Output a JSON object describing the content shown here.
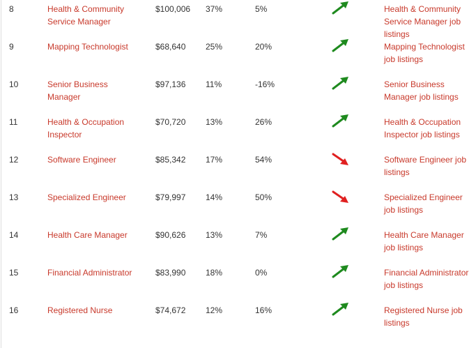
{
  "rows": [
    {
      "rank": "8",
      "title": "Health & Community Service Manager",
      "title_lines": [
        "Health & Community",
        "Service Manager"
      ],
      "salary": "$100,006",
      "pct_a": "37%",
      "pct_b": "5%",
      "trend": "up",
      "listing_lines": [
        "Health & Community",
        "Service Manager job",
        "listings"
      ]
    },
    {
      "rank": "9",
      "title": "Mapping Technologist",
      "title_lines": [
        "Mapping Technologist"
      ],
      "salary": "$68,640",
      "pct_a": "25%",
      "pct_b": "20%",
      "trend": "up",
      "listing_lines": [
        "Mapping Technologist",
        "job listings"
      ]
    },
    {
      "rank": "10",
      "title": "Senior Business Manager",
      "title_lines": [
        "Senior Business",
        "Manager"
      ],
      "salary": "$97,136",
      "pct_a": "11%",
      "pct_b": "-16%",
      "trend": "up",
      "listing_lines": [
        "Senior Business",
        "Manager job listings"
      ]
    },
    {
      "rank": "11",
      "title": "Health & Occupation Inspector",
      "title_lines": [
        "Health & Occupation",
        "Inspector"
      ],
      "salary": "$70,720",
      "pct_a": "13%",
      "pct_b": "26%",
      "trend": "up",
      "listing_lines": [
        "Health & Occupation",
        "Inspector job listings"
      ]
    },
    {
      "rank": "12",
      "title": "Software Engineer",
      "title_lines": [
        "Software Engineer"
      ],
      "salary": "$85,342",
      "pct_a": "17%",
      "pct_b": "54%",
      "trend": "down",
      "listing_lines": [
        "Software Engineer job",
        "listings"
      ]
    },
    {
      "rank": "13",
      "title": "Specialized Engineer",
      "title_lines": [
        "Specialized Engineer"
      ],
      "salary": "$79,997",
      "pct_a": "14%",
      "pct_b": "50%",
      "trend": "down",
      "listing_lines": [
        "Specialized Engineer",
        "job listings"
      ]
    },
    {
      "rank": "14",
      "title": "Health Care Manager",
      "title_lines": [
        "Health Care Manager"
      ],
      "salary": "$90,626",
      "pct_a": "13%",
      "pct_b": "7%",
      "trend": "up",
      "listing_lines": [
        "Health Care Manager",
        "job listings"
      ]
    },
    {
      "rank": "15",
      "title": "Financial Administrator",
      "title_lines": [
        "Financial Administrator"
      ],
      "salary": "$83,990",
      "pct_a": "18%",
      "pct_b": "0%",
      "trend": "up",
      "listing_lines": [
        "Financial Administrator",
        "job listings"
      ]
    },
    {
      "rank": "16",
      "title": "Registered Nurse",
      "title_lines": [
        "Registered Nurse"
      ],
      "salary": "$74,672",
      "pct_a": "12%",
      "pct_b": "16%",
      "trend": "up",
      "listing_lines": [
        "Registered Nurse job",
        "listings"
      ]
    }
  ],
  "icons": {
    "up": "trend-up-arrow-icon",
    "down": "trend-down-arrow-icon"
  },
  "colors": {
    "link": "#c8392b",
    "up": "#1e8a1e",
    "down": "#e02020",
    "text": "#333333"
  }
}
